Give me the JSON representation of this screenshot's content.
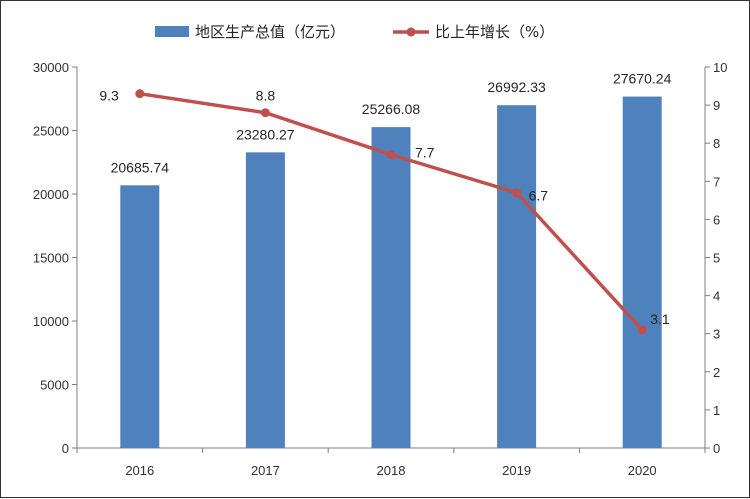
{
  "chart_data": {
    "type": "bar",
    "categories": [
      "2016",
      "2017",
      "2018",
      "2019",
      "2020"
    ],
    "series": [
      {
        "name": "地区生产总值（亿元）",
        "type": "bar",
        "axis": "left",
        "color": "#4f81bd",
        "values": [
          20685.74,
          23280.27,
          25266.08,
          26992.33,
          27670.24
        ],
        "labels": [
          "20685.74",
          "23280.27",
          "25266.08",
          "26992.33",
          "27670.24"
        ]
      },
      {
        "name": "比上年增长（%）",
        "type": "line",
        "axis": "right",
        "color": "#c0504d",
        "values": [
          9.3,
          8.8,
          7.7,
          6.7,
          3.1
        ],
        "labels": [
          "9.3",
          "8.8",
          "7.7",
          "6.7",
          "3.1"
        ]
      }
    ],
    "y_left": {
      "min": 0,
      "max": 30000,
      "ticks": [
        "0",
        "5000",
        "10000",
        "15000",
        "20000",
        "25000",
        "30000"
      ]
    },
    "y_right": {
      "min": 0,
      "max": 10,
      "ticks": [
        "0",
        "1",
        "2",
        "3",
        "4",
        "5",
        "6",
        "7",
        "8",
        "9",
        "10"
      ]
    },
    "grid": false,
    "legend_position": "top"
  }
}
